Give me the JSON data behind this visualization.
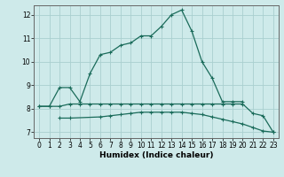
{
  "xlabel": "Humidex (Indice chaleur)",
  "background_color": "#ceeaea",
  "grid_color": "#aacfcf",
  "line_color": "#1a6b5a",
  "x": [
    0,
    1,
    2,
    3,
    4,
    5,
    6,
    7,
    8,
    9,
    10,
    11,
    12,
    13,
    14,
    15,
    16,
    17,
    18,
    19,
    20,
    21,
    22,
    23
  ],
  "line1_y": [
    8.1,
    8.1,
    8.1,
    8.2,
    8.2,
    8.2,
    8.2,
    8.2,
    8.2,
    8.2,
    8.2,
    8.2,
    8.2,
    8.2,
    8.2,
    8.2,
    8.2,
    8.2,
    8.2,
    8.2,
    8.2,
    7.8,
    7.7,
    7.0
  ],
  "line2_x": [
    2,
    3,
    6,
    7,
    8,
    9,
    10,
    11,
    12,
    13,
    14,
    15,
    16,
    17,
    18,
    19,
    20,
    21,
    22,
    23
  ],
  "line2_y": [
    7.6,
    7.6,
    7.65,
    7.7,
    7.75,
    7.8,
    7.85,
    7.85,
    7.85,
    7.85,
    7.85,
    7.8,
    7.75,
    7.65,
    7.55,
    7.45,
    7.35,
    7.2,
    7.05,
    7.0
  ],
  "line3_x": [
    0,
    1,
    2,
    3,
    4,
    5,
    6,
    7,
    8,
    9,
    10,
    11,
    12,
    13,
    14,
    15,
    16,
    17,
    18,
    19,
    20
  ],
  "line3_y": [
    8.1,
    8.1,
    8.9,
    8.9,
    8.3,
    9.5,
    10.3,
    10.4,
    10.7,
    10.8,
    11.1,
    11.1,
    11.5,
    12.0,
    12.2,
    11.3,
    10.0,
    9.3,
    8.3,
    8.3,
    8.3
  ],
  "ylim": [
    6.75,
    12.4
  ],
  "xlim": [
    -0.5,
    23.5
  ],
  "yticks": [
    7,
    8,
    9,
    10,
    11,
    12
  ],
  "xticks": [
    0,
    1,
    2,
    3,
    4,
    5,
    6,
    7,
    8,
    9,
    10,
    11,
    12,
    13,
    14,
    15,
    16,
    17,
    18,
    19,
    20,
    21,
    22,
    23
  ],
  "xlabel_fontsize": 6.5,
  "tick_fontsize": 5.5
}
